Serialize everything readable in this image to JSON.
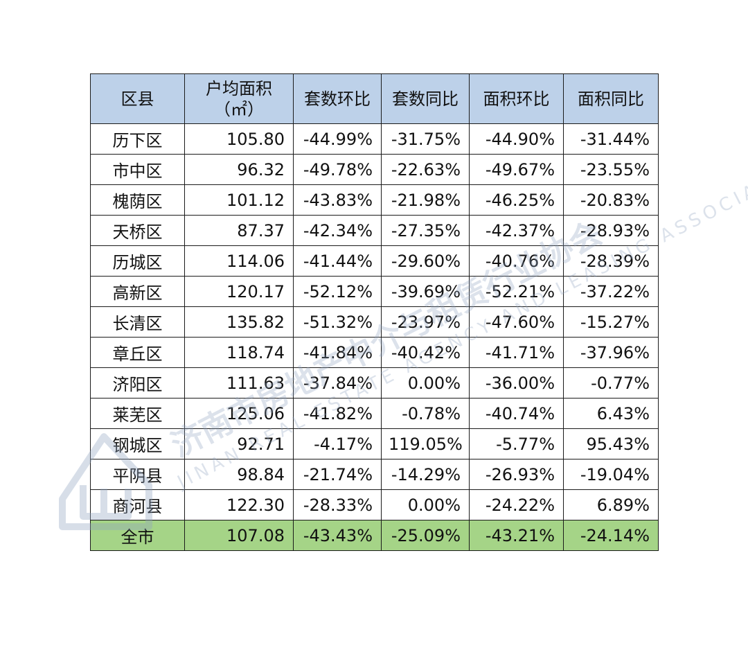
{
  "table": {
    "headers": [
      "区县",
      [
        "户均面积",
        "（㎡）"
      ],
      "套数环比",
      "套数同比",
      "面积环比",
      "面积同比"
    ],
    "rows": [
      [
        "历下区",
        "105.80",
        "-44.99%",
        "-31.75%",
        "-44.90%",
        "-31.44%"
      ],
      [
        "市中区",
        "96.32",
        "-49.78%",
        "-22.63%",
        "-49.67%",
        "-23.55%"
      ],
      [
        "槐荫区",
        "101.12",
        "-43.83%",
        "-21.98%",
        "-46.25%",
        "-20.83%"
      ],
      [
        "天桥区",
        "87.37",
        "-42.34%",
        "-27.35%",
        "-42.37%",
        "-28.93%"
      ],
      [
        "历城区",
        "114.06",
        "-41.44%",
        "-29.60%",
        "-40.76%",
        "-28.39%"
      ],
      [
        "高新区",
        "120.17",
        "-52.12%",
        "-39.69%",
        "-52.21%",
        "-37.22%"
      ],
      [
        "长清区",
        "135.82",
        "-51.32%",
        "-23.97%",
        "-47.60%",
        "-15.27%"
      ],
      [
        "章丘区",
        "118.74",
        "-41.84%",
        "-40.42%",
        "-41.71%",
        "-37.96%"
      ],
      [
        "济阳区",
        "111.63",
        "-37.84%",
        "0.00%",
        "-36.00%",
        "-0.77%"
      ],
      [
        "莱芜区",
        "125.06",
        "-41.82%",
        "-0.78%",
        "-40.74%",
        "6.43%"
      ],
      [
        "钢城区",
        "92.71",
        "-4.17%",
        "119.05%",
        "-5.77%",
        "95.43%"
      ],
      [
        "平阴县",
        "98.84",
        "-21.74%",
        "-14.29%",
        "-26.93%",
        "-19.04%"
      ],
      [
        "商河县",
        "122.30",
        "-28.33%",
        "0.00%",
        "-24.22%",
        "6.89%"
      ]
    ],
    "total": [
      "全市",
      "107.08",
      "-43.43%",
      "-25.09%",
      "-43.21%",
      "-24.14%"
    ]
  },
  "watermark": {
    "cn": "济南市房地产中介与租赁行业协会",
    "en": "JINAN REAL ESTATE AGENCY AND LEASING ASSOCIATION",
    "color": "#8fa3c0"
  },
  "colors": {
    "header_bg": "#bdd1e9",
    "total_bg": "#a5d487"
  }
}
